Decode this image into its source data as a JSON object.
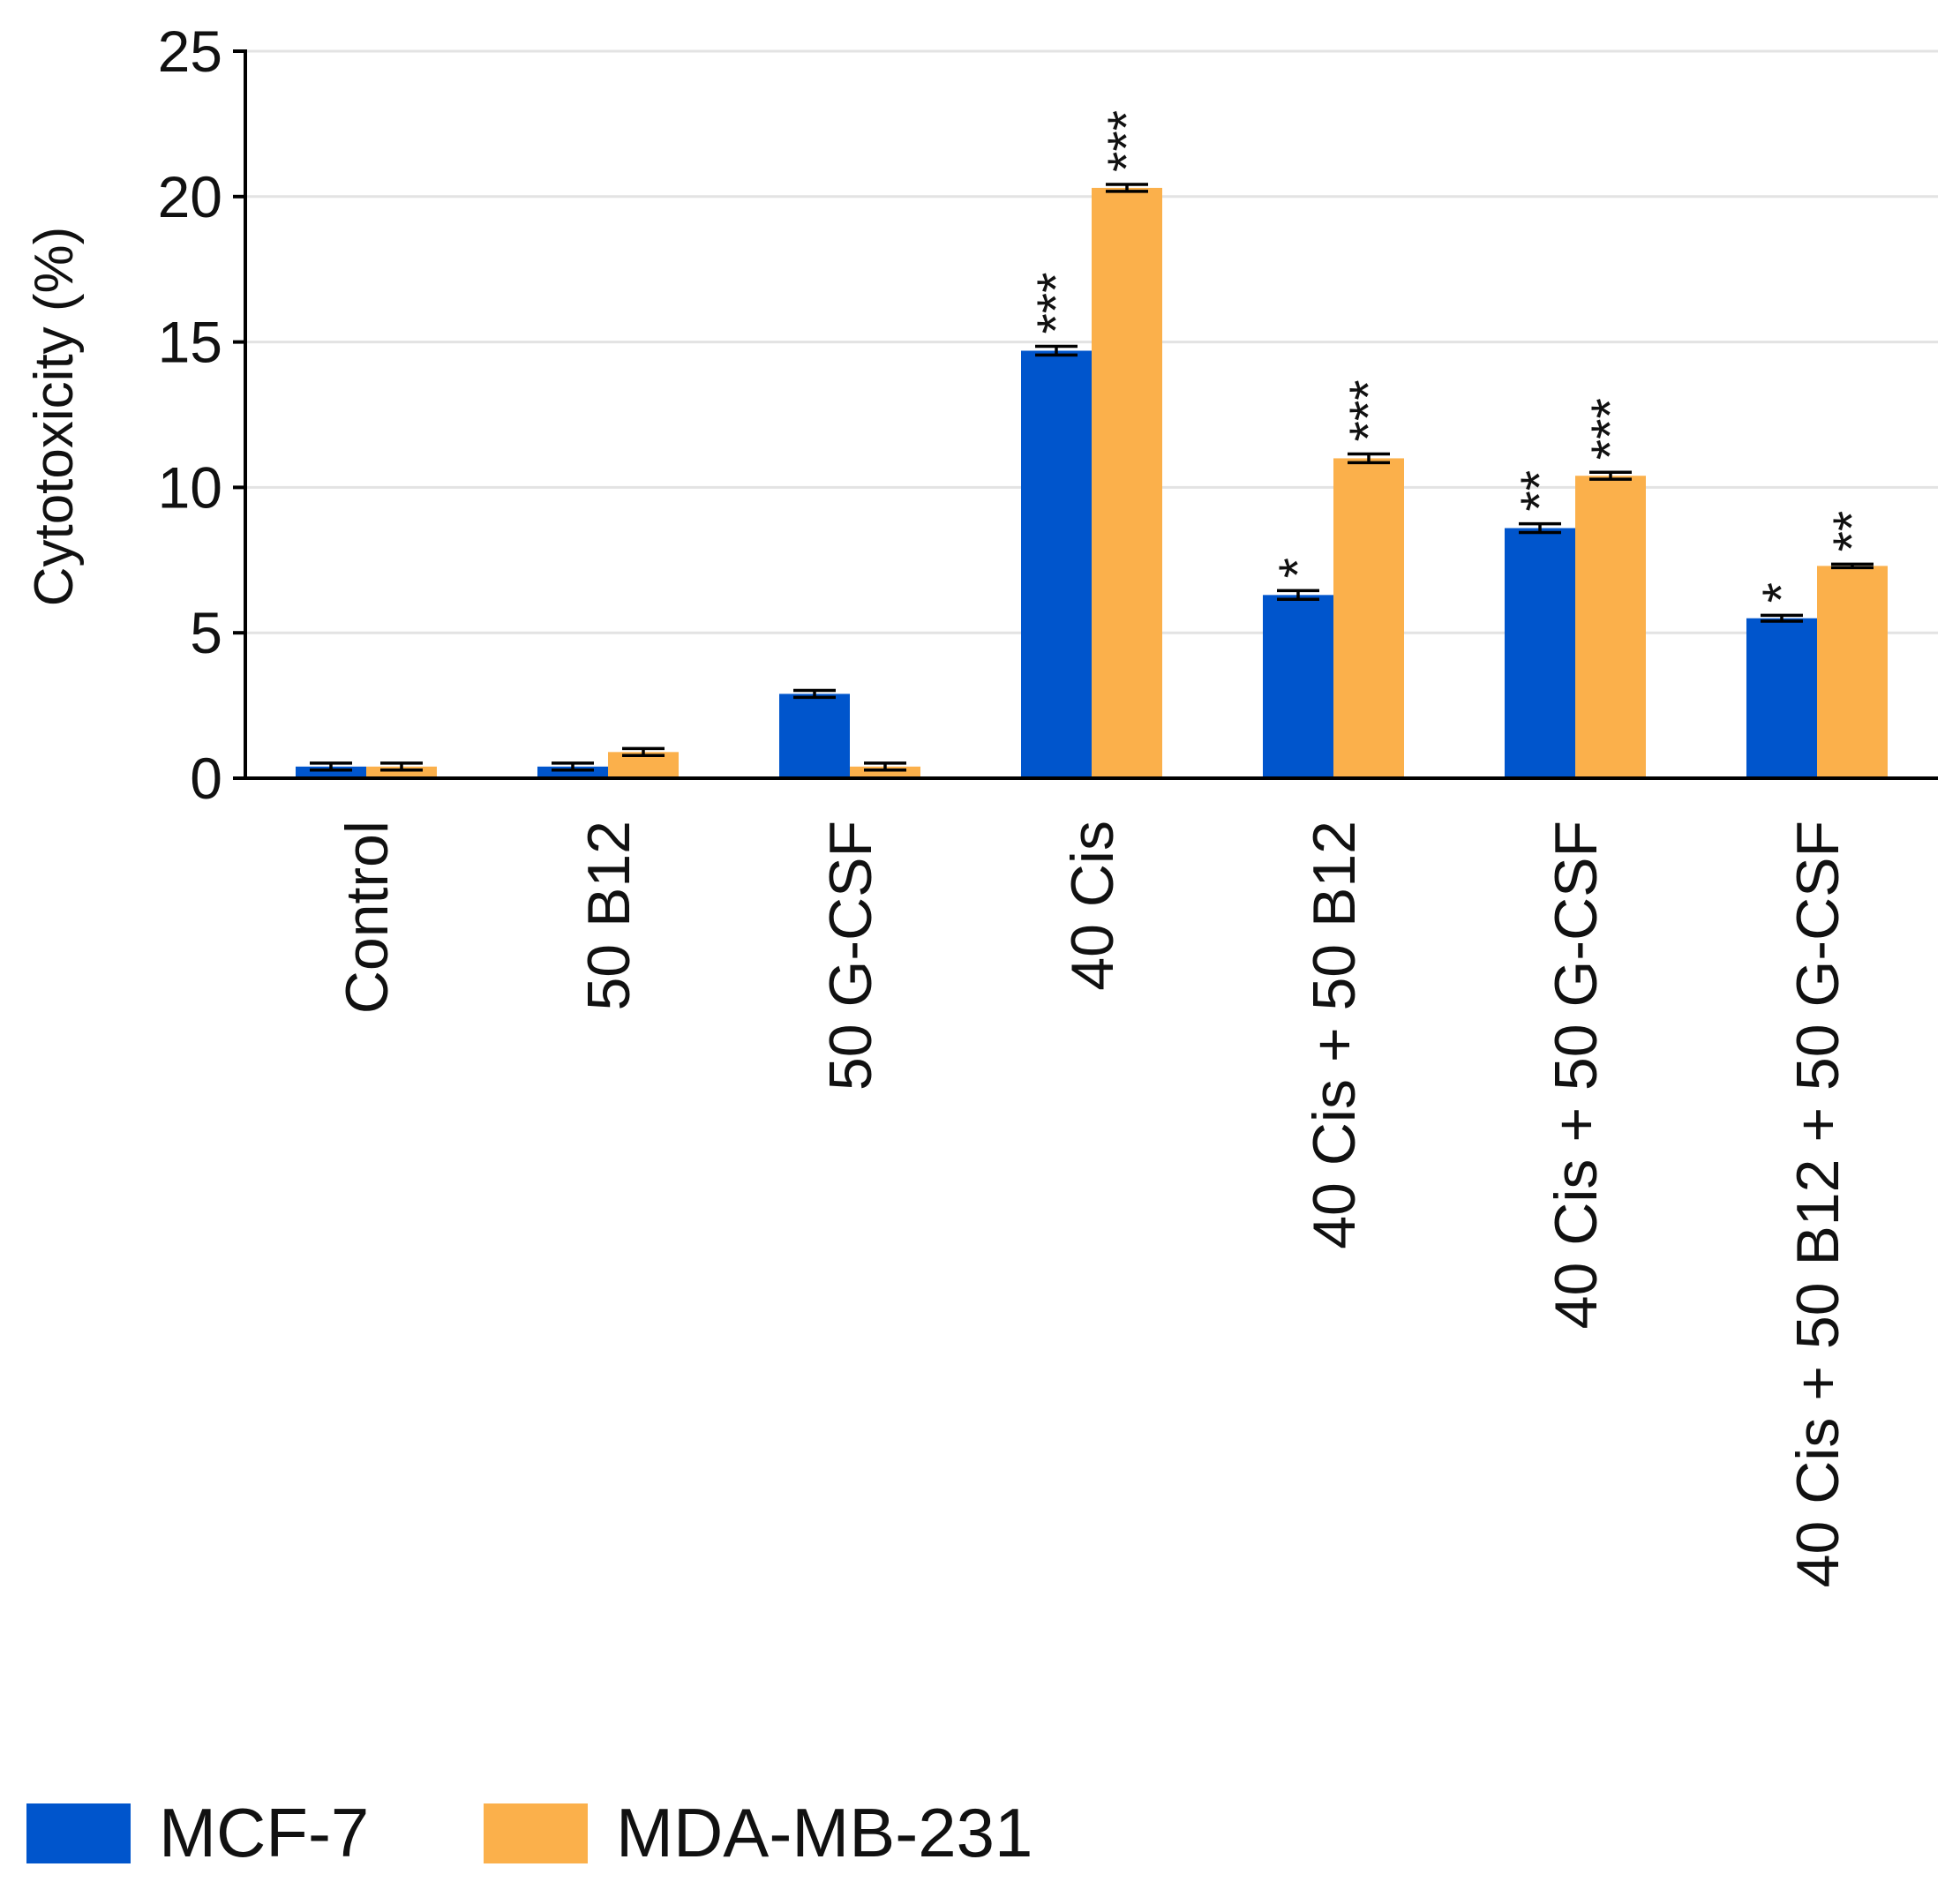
{
  "chart_data": {
    "type": "bar",
    "title": "",
    "xlabel": "",
    "ylabel": "Cytotoxicity (%)",
    "ylim": [
      0,
      25
    ],
    "yticks": [
      0,
      5,
      10,
      15,
      20,
      25
    ],
    "grid": true,
    "legend_position": "bottom-left",
    "categories": [
      "Control",
      "50 B12",
      "50 G-CSF",
      "40 Cis",
      "40 Cis + 50 B12",
      "40 Cis + 50 G-CSF",
      "40 Cis + 50 B12 + 50 G-CSF"
    ],
    "series": [
      {
        "name": "MCF-7",
        "color": "#0055cc",
        "values": [
          0.4,
          0.4,
          2.9,
          14.7,
          6.3,
          8.6,
          5.5
        ],
        "errors": [
          0.12,
          0.12,
          0.12,
          0.15,
          0.15,
          0.15,
          0.1
        ],
        "significance": [
          "",
          "",
          "",
          "***",
          "*",
          "**",
          "*"
        ]
      },
      {
        "name": "MDA-MB-231",
        "color": "#fbb04b",
        "values": [
          0.4,
          0.9,
          0.4,
          20.3,
          11.0,
          10.4,
          7.3
        ],
        "errors": [
          0.12,
          0.12,
          0.12,
          0.12,
          0.15,
          0.12,
          0.06
        ],
        "significance": [
          "",
          "",
          "",
          "***",
          "***",
          "***",
          "**"
        ]
      }
    ]
  }
}
